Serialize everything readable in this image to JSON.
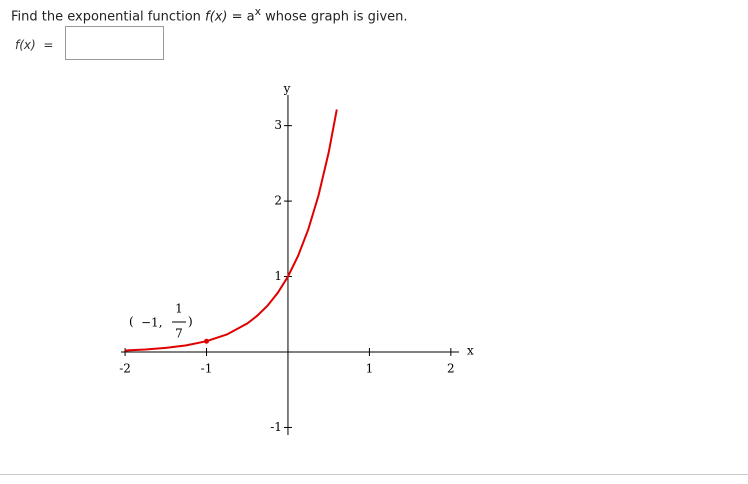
{
  "question": {
    "lead": "Find the exponential function",
    "func": "f(x)",
    "equals": "= a",
    "exponent": "x",
    "tail": "whose graph is given."
  },
  "answer": {
    "label": "f(x)",
    "equals": "="
  },
  "chart_data": {
    "type": "line",
    "x": [
      -2,
      -1.75,
      -1.5,
      -1.25,
      -1,
      -0.75,
      -0.5,
      -0.375,
      -0.25,
      -0.125,
      0,
      0.125,
      0.25,
      0.375,
      0.5,
      0.6
    ],
    "values": [
      0.0204,
      0.0332,
      0.054,
      0.0878,
      0.1429,
      0.2324,
      0.378,
      0.482,
      0.6148,
      0.7841,
      1,
      1.2754,
      1.6266,
      2.0745,
      2.6458,
      3.214
    ],
    "color": "#e00000",
    "xlabel": "x",
    "ylabel": "y",
    "xlim": [
      -2.05,
      2.1
    ],
    "ylim": [
      -1.1,
      3.3
    ],
    "xticks": [
      -2,
      -1,
      1,
      2
    ],
    "yticks": [
      -1,
      1,
      2,
      3
    ],
    "point": {
      "x": -1,
      "y": 0.1429,
      "label_x": "−1,",
      "label_num": "1",
      "label_den": "7"
    }
  }
}
